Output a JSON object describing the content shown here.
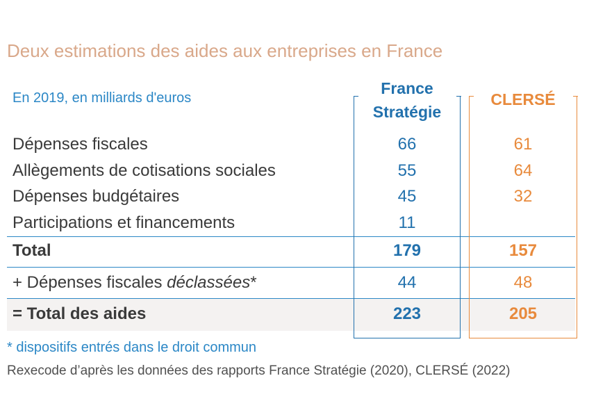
{
  "chart_data": {
    "type": "table",
    "title": "Deux estimations des aides aux entreprises en France",
    "subtitle": "En 2019, en milliards d'euros",
    "columns": [
      {
        "name_line1": "France",
        "name_line2": "Stratégie",
        "color": "#2271ad"
      },
      {
        "name": "CLERSÉ",
        "color": "#e88a3c"
      }
    ],
    "rows": [
      {
        "label": "Dépenses fiscales",
        "france_strategie": "66",
        "clerse": "61"
      },
      {
        "label": "Allègements de cotisations sociales",
        "france_strategie": "55",
        "clerse": "64"
      },
      {
        "label": "Dépenses budgétaires",
        "france_strategie": "45",
        "clerse": "32"
      },
      {
        "label": "Participations et financements",
        "france_strategie": "11",
        "clerse": ""
      },
      {
        "label": "Total",
        "france_strategie": "179",
        "clerse": "157"
      },
      {
        "label_prefix": "+ Dépenses fiscales ",
        "label_em": "déclassées",
        "label_suffix": "*",
        "france_strategie": "44",
        "clerse": "48"
      },
      {
        "label": "= Total des aides",
        "france_strategie": "223",
        "clerse": "205"
      }
    ],
    "footnote": "* dispositifs entrés dans le droit commun",
    "source": "Rexecode d’après les données des rapports France Stratégie (2020), CLERSÉ (2022)"
  }
}
